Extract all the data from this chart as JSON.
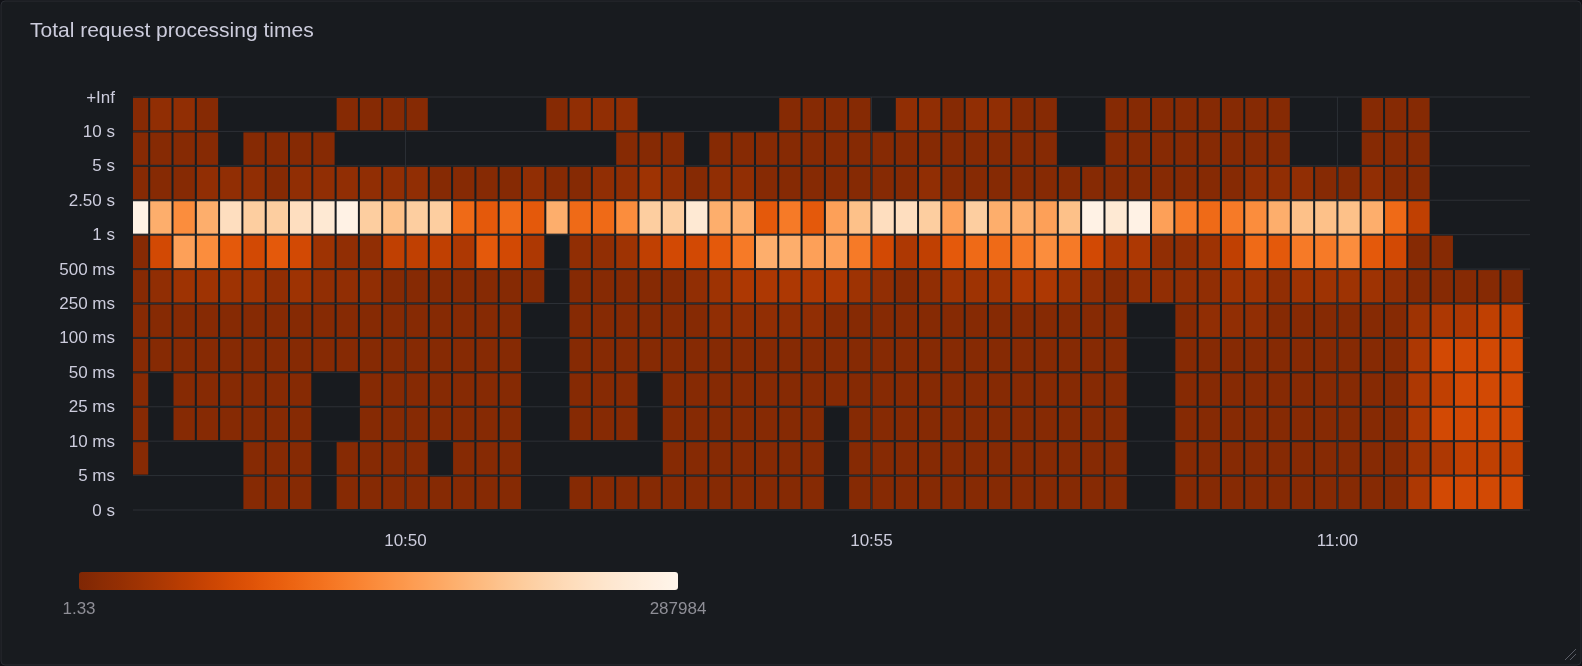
{
  "chart_data": {
    "type": "heatmap",
    "title": "Total request processing times",
    "x": [
      10.78542,
      10.78958,
      10.79375,
      10.79792,
      10.80208,
      10.80625,
      10.81042,
      10.81458,
      10.81875,
      10.82292,
      10.82708,
      10.83125,
      10.83542,
      10.83958,
      10.84375,
      10.84792,
      10.85208,
      10.85625,
      10.86042,
      10.86458,
      10.86875,
      10.87292,
      10.87708,
      10.88125,
      10.88542,
      10.88958,
      10.89375,
      10.89792,
      10.90208,
      10.90625,
      10.91042,
      10.91458,
      10.91875,
      10.92292,
      10.92708,
      10.93125,
      10.93542,
      10.93958,
      10.94375,
      10.94792,
      10.95208,
      10.95625,
      10.96042,
      10.96458,
      10.96875,
      10.97292,
      10.97708,
      10.98125,
      10.98542,
      10.98958,
      10.99375,
      10.99792,
      11.00208,
      11.00625,
      11.01042,
      11.01458,
      11.01875,
      11.02292,
      11.02708,
      11.03125
    ],
    "xlim": [
      10.7846,
      11.03444
    ],
    "xticks": [
      {
        "value": 10.83333,
        "label": "10:50"
      },
      {
        "value": 10.91667,
        "label": "10:55"
      },
      {
        "value": 11.0,
        "label": "11:00"
      }
    ],
    "y_categories": [
      "+Inf",
      "10 s",
      "5 s",
      "2.50 s",
      "1 s",
      "500 ms",
      "250 ms",
      "100 ms",
      "50 ms",
      "25 ms",
      "10 ms",
      "5 ms"
    ],
    "annotations": [
      "0 s"
    ],
    "grid": true,
    "clim": [
      1.33,
      287984
    ],
    "cticks": [
      1.33,
      287984
    ],
    "cells": [
      [
        6000,
        16000,
        16000,
        6000,
        null,
        null,
        null,
        null,
        null,
        6000,
        6000,
        6000,
        6000,
        null,
        null,
        null,
        null,
        null,
        6000,
        16000,
        16000,
        16000,
        null,
        null,
        null,
        null,
        null,
        null,
        6000,
        6000,
        6000,
        6000,
        null,
        16000,
        16000,
        6000,
        16000,
        16000,
        6000,
        6000,
        null,
        null,
        6000,
        6000,
        6000,
        6000,
        6000,
        6000,
        6000,
        6000,
        null,
        null,
        null,
        6000,
        6000,
        6000,
        null,
        null,
        null,
        null
      ],
      [
        6000,
        6000,
        6000,
        6000,
        null,
        6000,
        6000,
        6000,
        6000,
        null,
        null,
        null,
        null,
        null,
        null,
        null,
        null,
        null,
        null,
        null,
        null,
        6000,
        6000,
        6000,
        null,
        6000,
        6000,
        6000,
        6000,
        6000,
        6000,
        6000,
        6000,
        6000,
        6000,
        6000,
        6000,
        6000,
        6000,
        6000,
        null,
        null,
        6000,
        6000,
        6000,
        6000,
        6000,
        6000,
        6000,
        6000,
        null,
        null,
        null,
        6000,
        6000,
        6000,
        null,
        null,
        null,
        null
      ],
      [
        6000,
        6000,
        6000,
        16000,
        16000,
        16000,
        6000,
        16000,
        16000,
        16000,
        16000,
        16000,
        16000,
        6000,
        6000,
        6000,
        6000,
        16000,
        6000,
        6000,
        16000,
        16000,
        28000,
        16000,
        6000,
        16000,
        16000,
        6000,
        6000,
        6000,
        6000,
        6000,
        6000,
        6000,
        16000,
        6000,
        6000,
        6000,
        6000,
        6000,
        6000,
        6000,
        6000,
        6000,
        6000,
        6000,
        6000,
        6000,
        16000,
        16000,
        16000,
        6000,
        6000,
        16000,
        6000,
        6000,
        null,
        null,
        null,
        null
      ],
      [
        280000,
        180000,
        144000,
        180000,
        240000,
        216000,
        216000,
        240000,
        260000,
        280000,
        216000,
        200000,
        216000,
        216000,
        108000,
        90000,
        108000,
        90000,
        180000,
        108000,
        108000,
        144000,
        216000,
        216000,
        260000,
        180000,
        180000,
        90000,
        125000,
        90000,
        165000,
        200000,
        240000,
        240000,
        216000,
        165000,
        216000,
        180000,
        180000,
        165000,
        200000,
        280000,
        260000,
        280000,
        165000,
        125000,
        108000,
        125000,
        144000,
        180000,
        200000,
        200000,
        200000,
        180000,
        108000,
        55000,
        null,
        null,
        null,
        null
      ],
      [
        6000,
        70000,
        165000,
        144000,
        90000,
        70000,
        90000,
        70000,
        28000,
        16000,
        16000,
        55000,
        55000,
        55000,
        40000,
        90000,
        70000,
        40000,
        null,
        16000,
        16000,
        28000,
        55000,
        70000,
        70000,
        90000,
        125000,
        180000,
        180000,
        165000,
        165000,
        125000,
        70000,
        40000,
        55000,
        90000,
        108000,
        108000,
        125000,
        144000,
        125000,
        70000,
        40000,
        40000,
        16000,
        16000,
        28000,
        55000,
        108000,
        90000,
        125000,
        125000,
        144000,
        90000,
        70000,
        6000,
        6000,
        null,
        null,
        null
      ],
      [
        6000,
        16000,
        28000,
        28000,
        28000,
        28000,
        16000,
        28000,
        16000,
        16000,
        16000,
        6000,
        6000,
        6000,
        6000,
        6000,
        6000,
        6000,
        null,
        6000,
        6000,
        6000,
        6000,
        6000,
        16000,
        28000,
        40000,
        40000,
        40000,
        40000,
        40000,
        28000,
        16000,
        6000,
        16000,
        28000,
        28000,
        28000,
        40000,
        40000,
        28000,
        16000,
        6000,
        16000,
        16000,
        16000,
        16000,
        28000,
        28000,
        16000,
        28000,
        28000,
        28000,
        28000,
        16000,
        6000,
        6000,
        6000,
        6000,
        6000
      ],
      [
        6000,
        6000,
        6000,
        6000,
        6000,
        6000,
        6000,
        6000,
        6000,
        6000,
        6000,
        6000,
        6000,
        6000,
        6000,
        6000,
        6000,
        null,
        null,
        6000,
        6000,
        6000,
        6000,
        6000,
        6000,
        16000,
        16000,
        16000,
        16000,
        16000,
        6000,
        6000,
        6000,
        6000,
        6000,
        6000,
        6000,
        6000,
        6000,
        6000,
        6000,
        6000,
        6000,
        null,
        null,
        6000,
        16000,
        16000,
        16000,
        6000,
        6000,
        6000,
        6000,
        6000,
        6000,
        28000,
        40000,
        40000,
        55000,
        55000
      ],
      [
        6000,
        6000,
        6000,
        6000,
        6000,
        6000,
        6000,
        6000,
        6000,
        6000,
        6000,
        6000,
        6000,
        6000,
        6000,
        6000,
        6000,
        null,
        null,
        6000,
        6000,
        6000,
        6000,
        6000,
        6000,
        6000,
        6000,
        6000,
        6000,
        6000,
        6000,
        6000,
        6000,
        6000,
        6000,
        6000,
        6000,
        6000,
        6000,
        6000,
        6000,
        6000,
        6000,
        null,
        null,
        6000,
        6000,
        6000,
        6000,
        6000,
        6000,
        6000,
        6000,
        6000,
        6000,
        40000,
        70000,
        70000,
        70000,
        70000
      ],
      [
        6000,
        null,
        6000,
        6000,
        6000,
        6000,
        6000,
        6000,
        null,
        null,
        6000,
        6000,
        6000,
        6000,
        6000,
        6000,
        6000,
        null,
        null,
        6000,
        6000,
        6000,
        null,
        6000,
        6000,
        6000,
        6000,
        6000,
        6000,
        6000,
        6000,
        6000,
        6000,
        6000,
        6000,
        6000,
        6000,
        6000,
        6000,
        6000,
        6000,
        6000,
        6000,
        null,
        null,
        6000,
        6000,
        6000,
        6000,
        6000,
        6000,
        6000,
        6000,
        6000,
        6000,
        40000,
        55000,
        70000,
        70000,
        70000
      ],
      [
        6000,
        null,
        6000,
        6000,
        6000,
        6000,
        6000,
        6000,
        null,
        null,
        6000,
        6000,
        6000,
        6000,
        6000,
        6000,
        6000,
        null,
        null,
        6000,
        6000,
        6000,
        null,
        6000,
        6000,
        6000,
        6000,
        6000,
        6000,
        6000,
        null,
        6000,
        6000,
        6000,
        6000,
        6000,
        6000,
        6000,
        6000,
        6000,
        6000,
        6000,
        6000,
        null,
        null,
        6000,
        6000,
        6000,
        6000,
        6000,
        6000,
        6000,
        6000,
        6000,
        6000,
        40000,
        70000,
        70000,
        70000,
        70000
      ],
      [
        6000,
        null,
        null,
        null,
        null,
        6000,
        6000,
        6000,
        null,
        6000,
        6000,
        6000,
        6000,
        null,
        6000,
        6000,
        6000,
        null,
        null,
        null,
        null,
        null,
        null,
        6000,
        6000,
        6000,
        6000,
        6000,
        6000,
        6000,
        null,
        6000,
        6000,
        6000,
        6000,
        6000,
        6000,
        6000,
        6000,
        6000,
        6000,
        6000,
        6000,
        null,
        null,
        6000,
        6000,
        6000,
        6000,
        6000,
        6000,
        6000,
        6000,
        6000,
        6000,
        28000,
        40000,
        55000,
        55000,
        55000
      ],
      [
        null,
        null,
        null,
        null,
        null,
        6000,
        6000,
        6000,
        null,
        6000,
        6000,
        6000,
        6000,
        6000,
        6000,
        6000,
        6000,
        null,
        null,
        6000,
        6000,
        6000,
        6000,
        6000,
        6000,
        6000,
        6000,
        6000,
        6000,
        6000,
        null,
        6000,
        6000,
        6000,
        6000,
        6000,
        6000,
        6000,
        6000,
        6000,
        6000,
        6000,
        6000,
        null,
        null,
        6000,
        6000,
        6000,
        6000,
        6000,
        6000,
        6000,
        6000,
        6000,
        6000,
        40000,
        70000,
        70000,
        70000,
        70000
      ]
    ]
  }
}
